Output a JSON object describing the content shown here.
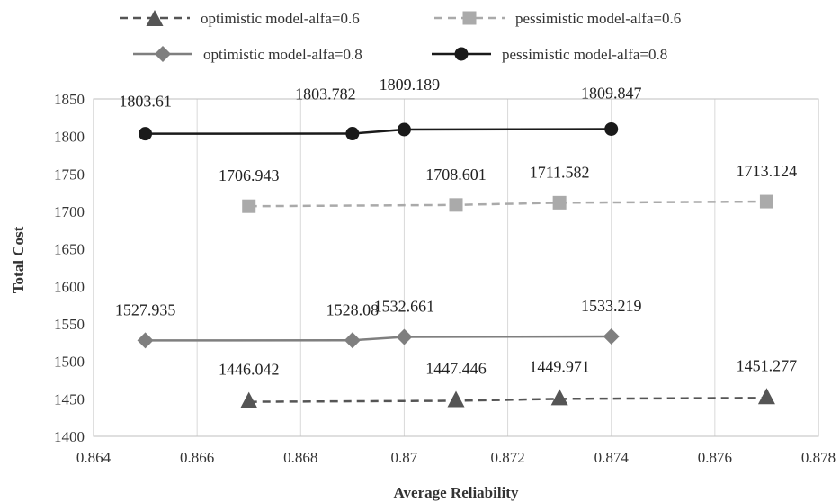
{
  "chart_data": {
    "type": "line",
    "xlabel": "Average Reliability",
    "ylabel": "Total Cost",
    "xlim": [
      0.864,
      0.878
    ],
    "ylim": [
      1400,
      1850
    ],
    "x_ticks": [
      0.864,
      0.866,
      0.868,
      0.87,
      0.872,
      0.874,
      0.876,
      0.878
    ],
    "x_tick_labels": [
      "0.864",
      "0.866",
      "0.868",
      "0.87",
      "0.872",
      "0.874",
      "0.876",
      "0.878"
    ],
    "y_ticks": [
      1400,
      1450,
      1500,
      1550,
      1600,
      1650,
      1700,
      1750,
      1800,
      1850
    ],
    "y_tick_labels": [
      "1400",
      "1450",
      "1500",
      "1550",
      "1600",
      "1650",
      "1700",
      "1750",
      "1800",
      "1850"
    ],
    "grid": "vertical",
    "legend_position": "top",
    "series": [
      {
        "name": "optimistic model-alfa=0.6",
        "color": "#555555",
        "line_style": "dashed",
        "marker": "triangle",
        "x": [
          0.867,
          0.871,
          0.873,
          0.877
        ],
        "y": [
          1446.042,
          1447.446,
          1449.971,
          1451.277
        ],
        "labels": [
          "1446.042",
          "1447.446",
          "1449.971",
          "1451.277"
        ]
      },
      {
        "name": "pessimistic model-alfa=0.6",
        "color": "#aaaaaa",
        "line_style": "dashed",
        "marker": "square",
        "x": [
          0.867,
          0.871,
          0.873,
          0.877
        ],
        "y": [
          1706.943,
          1708.601,
          1711.582,
          1713.124
        ],
        "labels": [
          "1706.943",
          "1708.601",
          "1711.582",
          "1713.124"
        ]
      },
      {
        "name": "optimistic model-alfa=0.8",
        "color": "#7f7f7f",
        "line_style": "solid",
        "marker": "diamond",
        "x": [
          0.865,
          0.869,
          0.87,
          0.874
        ],
        "y": [
          1527.935,
          1528.08,
          1532.661,
          1533.219
        ],
        "labels": [
          "1527.935",
          "1528.08",
          "1532.661",
          "1533.219"
        ]
      },
      {
        "name": "pessimistic model-alfa=0.8",
        "color": "#1a1a1a",
        "line_style": "solid",
        "marker": "circle",
        "x": [
          0.865,
          0.869,
          0.87,
          0.874
        ],
        "y": [
          1803.61,
          1803.782,
          1809.189,
          1809.847
        ],
        "labels": [
          "1803.61",
          "1803.782",
          "1809.189",
          "1809.847"
        ]
      }
    ]
  }
}
